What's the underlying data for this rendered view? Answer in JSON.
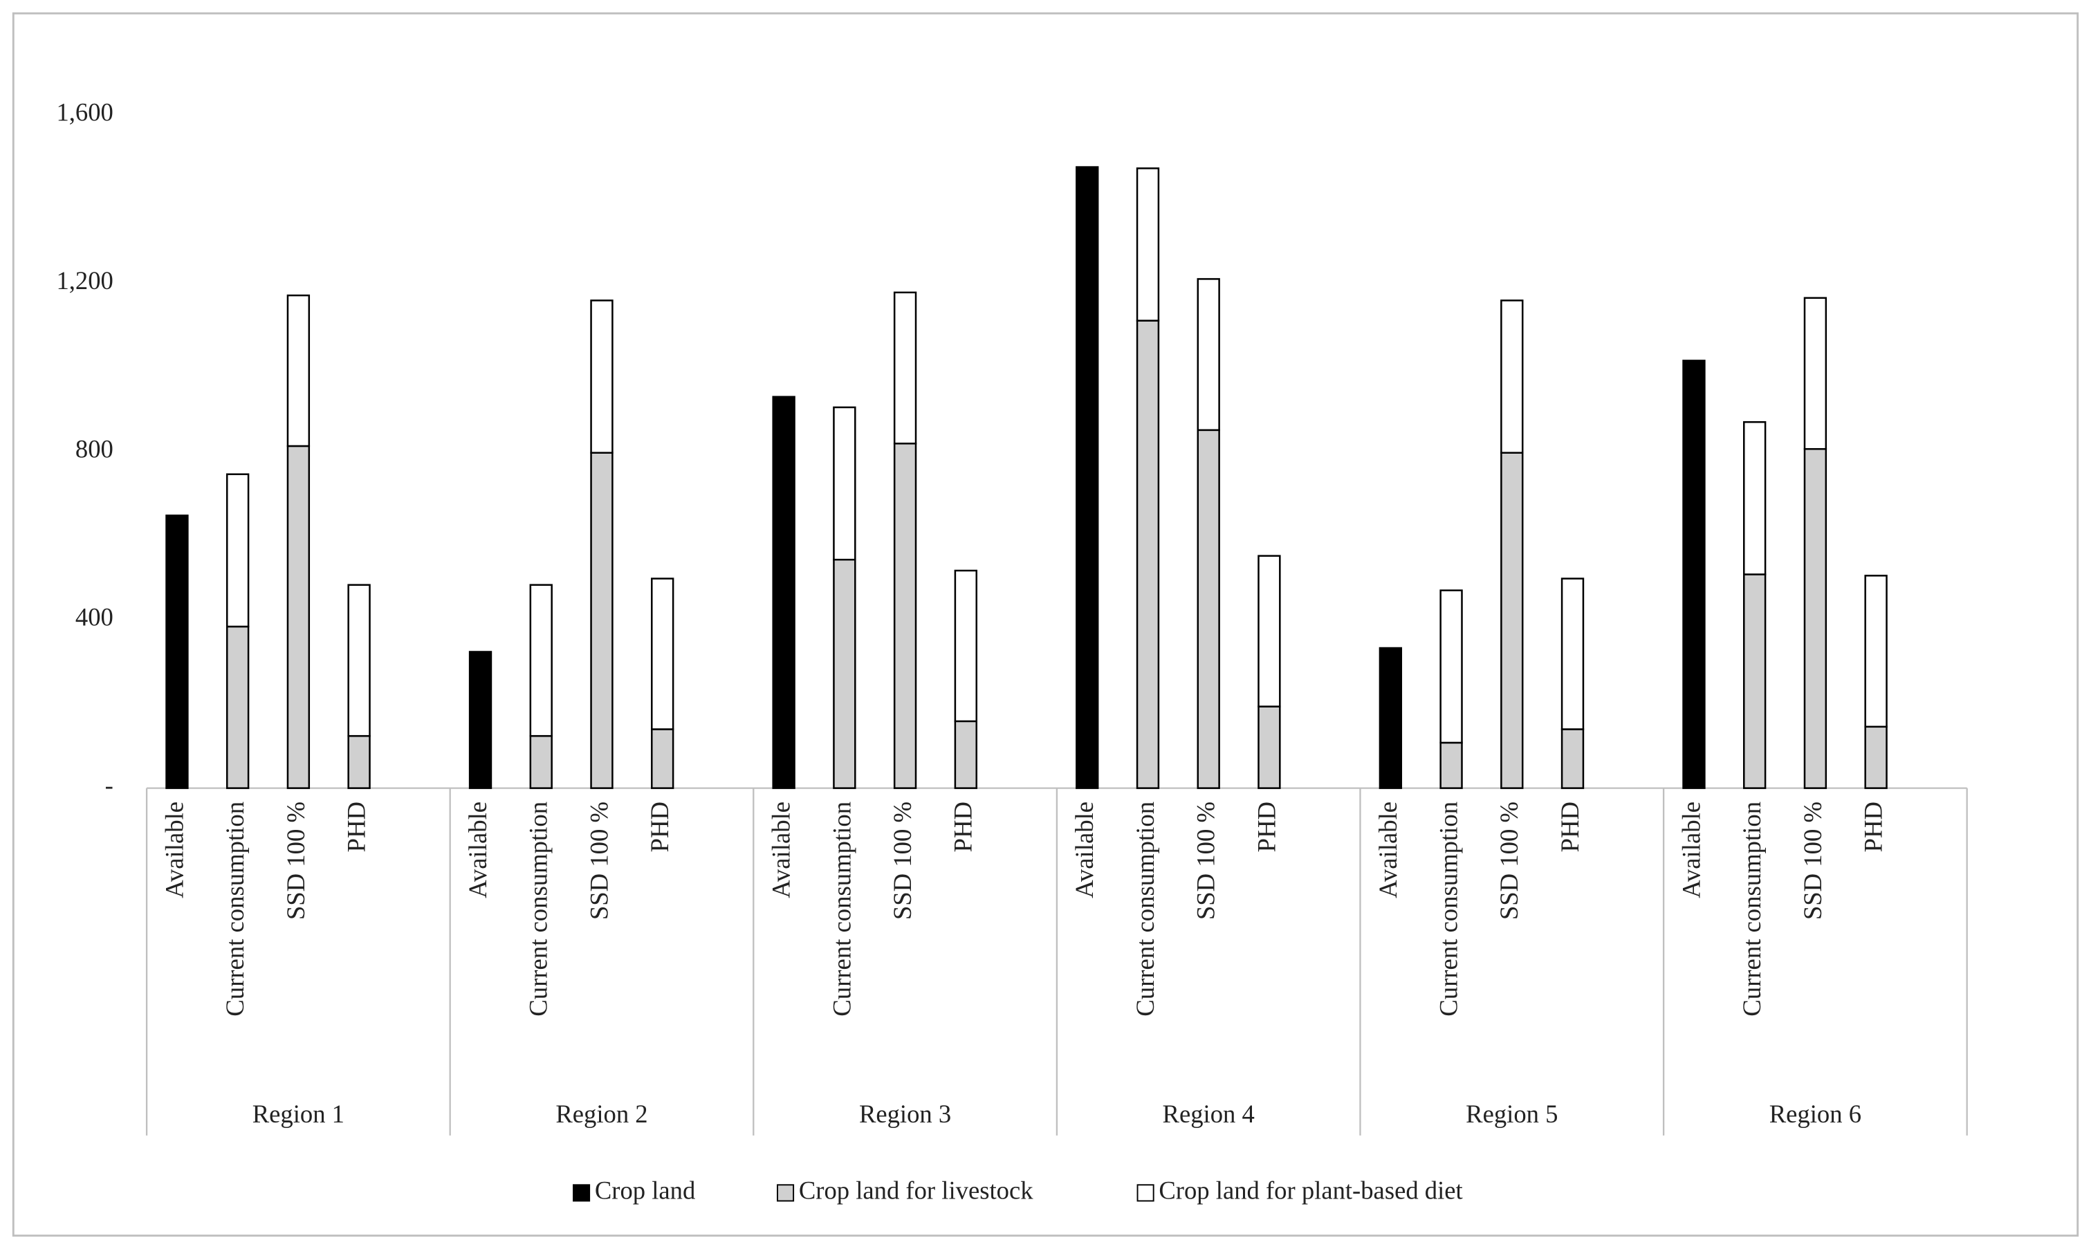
{
  "chart_data": {
    "type": "bar",
    "categories": [
      "Available",
      "Current consumption",
      "SSD 100 %",
      "PHD",
      "Available",
      "Current consumption",
      "SSD 100 %",
      "PHD",
      "Available",
      "Current consumption",
      "SSD 100 %",
      "PHD",
      "Available",
      "Current consumption",
      "SSD 100 %",
      "PHD",
      "Available",
      "Current consumption",
      "SSD 100 %",
      "PHD",
      "Available",
      "Current consumption",
      "SSD 100 %",
      "PHD"
    ],
    "groups": [
      "Region 1",
      "Region 2",
      "Region 3",
      "Region 4",
      "Region 5",
      "Region 6"
    ],
    "series": [
      {
        "name": "Crop land",
        "color": "#000000",
        "values": [
          648,
          null,
          null,
          null,
          324,
          null,
          null,
          null,
          930,
          null,
          null,
          null,
          1476,
          null,
          null,
          null,
          333,
          null,
          null,
          null,
          1016,
          null,
          null,
          null
        ]
      },
      {
        "name": "Crop land for livestock",
        "color": "#d0d0d0",
        "values": [
          null,
          384,
          813,
          124,
          null,
          124,
          797,
          140,
          null,
          543,
          819,
          159,
          null,
          1111,
          851,
          194,
          null,
          108,
          797,
          140,
          null,
          508,
          806,
          146
        ]
      },
      {
        "name": "Crop land for plant-based diet",
        "color": "#ffffff",
        "values": [
          null,
          362,
          358,
          359,
          null,
          359,
          362,
          358,
          null,
          362,
          359,
          358,
          null,
          362,
          359,
          358,
          null,
          362,
          362,
          358,
          null,
          362,
          359,
          359
        ]
      }
    ],
    "stacked": true,
    "ylim": [
      0,
      1800
    ],
    "yticks": [
      {
        "value": 0,
        "label": "-"
      },
      400,
      800,
      {
        "value": 1200,
        "label": "1,200"
      },
      {
        "value": 1600,
        "label": "1,600"
      }
    ],
    "grid": false,
    "legend": "bottom"
  }
}
